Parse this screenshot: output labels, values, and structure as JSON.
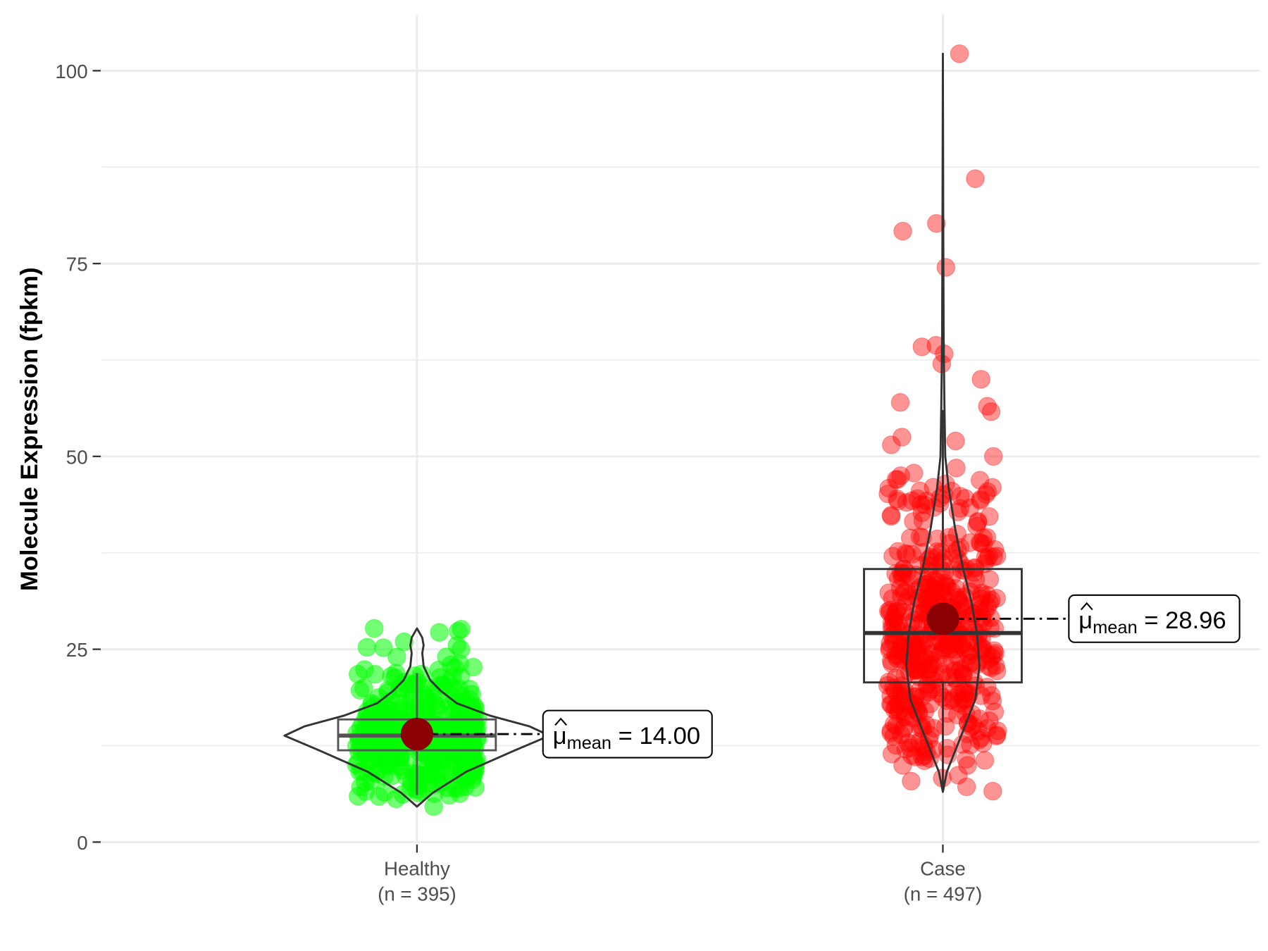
{
  "chart_data": {
    "type": "violin-box-scatter",
    "xlabel": "",
    "ylabel": "Molecule Expression (fpkm)",
    "ylim": [
      -3,
      108
    ],
    "yticks": [
      0,
      25,
      50,
      75,
      100
    ],
    "ytick_labels": [
      "0",
      "25",
      "50",
      "75",
      "100"
    ],
    "grid": true,
    "categories": [
      "Healthy",
      "Case"
    ],
    "groups": [
      {
        "name": "Healthy",
        "n_label": "(n = 395)",
        "n": 395,
        "color": "#00ff00",
        "box": {
          "whisker_low": 6.1,
          "q1": 11.9,
          "median": 13.8,
          "q3": 15.9,
          "whisker_high": 21.9
        },
        "mean": 14.0,
        "mean_label": {
          "symbol": "μ",
          "subscript": "mean",
          "text": "= 14.00"
        },
        "range": [
          4.6,
          27.7
        ],
        "violin_density": [
          [
            4.6,
            0
          ],
          [
            6.4,
            0.12
          ],
          [
            9.1,
            0.37
          ],
          [
            11.9,
            0.74
          ],
          [
            13.8,
            1
          ],
          [
            15,
            0.85
          ],
          [
            16.4,
            0.55
          ],
          [
            18,
            0.3
          ],
          [
            19.6,
            0.18
          ],
          [
            21,
            0.1
          ],
          [
            22.8,
            0.05
          ],
          [
            24.5,
            0.04
          ],
          [
            25.5,
            0.05
          ],
          [
            26.5,
            0.04
          ],
          [
            27.7,
            0
          ]
        ],
        "highlight_points": [
          27.7,
          27.6,
          25.5,
          24,
          6.2,
          6.3,
          4.6,
          7
        ]
      },
      {
        "name": "Case",
        "n_label": "(n = 497)",
        "n": 497,
        "color": "#ff0000",
        "box": {
          "whisker_low": 6.5,
          "q1": 20.7,
          "median": 27.1,
          "q3": 35.4,
          "whisker_high": 56
        },
        "mean": 28.96,
        "mean_label": {
          "symbol": "μ",
          "subscript": "mean",
          "text": "= 28.96"
        },
        "range": [
          6.5,
          102.2
        ],
        "violin_density": [
          [
            6.5,
            0
          ],
          [
            9.1,
            0.03
          ],
          [
            14.3,
            0.15
          ],
          [
            18.5,
            0.245
          ],
          [
            22.8,
            0.276
          ],
          [
            27,
            0.258
          ],
          [
            31.2,
            0.215
          ],
          [
            35.4,
            0.153
          ],
          [
            40.7,
            0.092
          ],
          [
            46,
            0.043
          ],
          [
            50,
            0.018
          ],
          [
            56.5,
            0.012
          ],
          [
            65,
            0.006
          ],
          [
            80,
            0.003
          ],
          [
            102.2,
            0
          ]
        ],
        "highlight_points": [
          102.2,
          86,
          80.2,
          79.2,
          74.5,
          63.3,
          64.4,
          64.2,
          62,
          60,
          57,
          56.5,
          55.8,
          52.5,
          52,
          51.5,
          50,
          48.5,
          47.5,
          46,
          45.5,
          44.5,
          12.8,
          11.3,
          7.9,
          6.6
        ]
      }
    ]
  }
}
